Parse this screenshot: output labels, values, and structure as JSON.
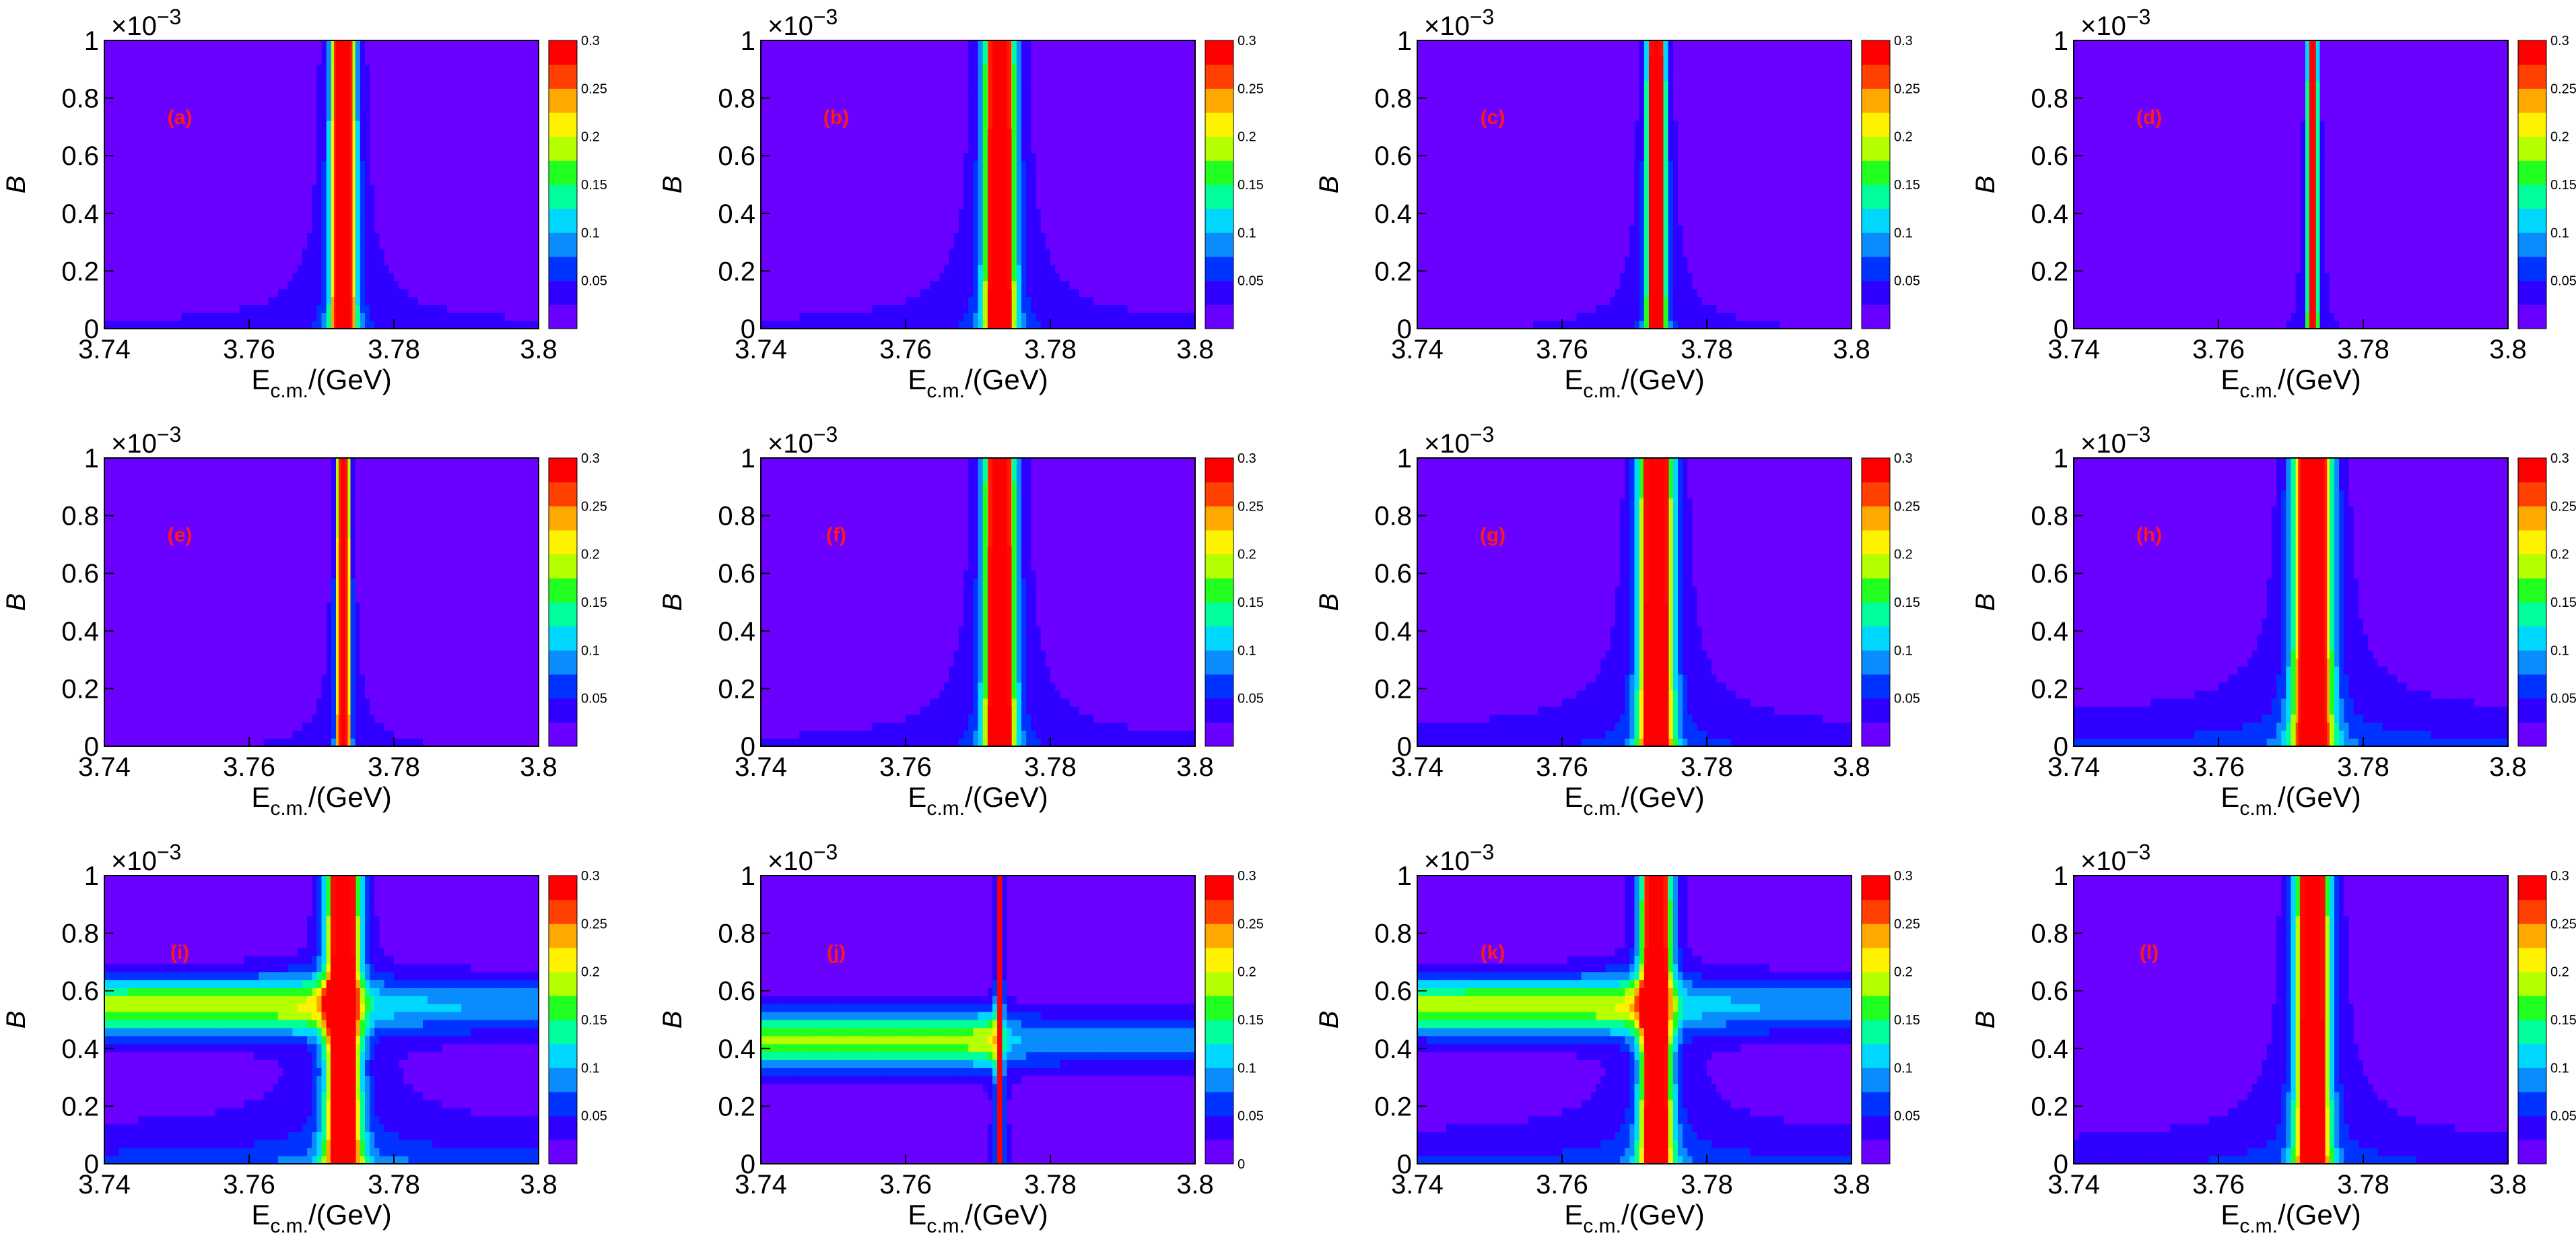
{
  "figure": {
    "palette": [
      "#6a00ff",
      "#2f00ff",
      "#0033ff",
      "#0a8cff",
      "#00d7ff",
      "#00ff9a",
      "#20ff20",
      "#b4ff00",
      "#fff200",
      "#ffa800",
      "#ff4000",
      "#ff0000"
    ]
  },
  "chart_data": [
    {
      "type": "heatmap",
      "panel_label": "(a)",
      "xlabel": "E",
      "xlabel_sub": "c.m.",
      "xlabel_tail": "/(GeV)",
      "ylabel": "B",
      "y_exponent": "×10",
      "y_exponent_sup": "−3",
      "x_range": [
        3.74,
        3.8
      ],
      "y_range": [
        0,
        1
      ],
      "x_ticks": [
        "3.74",
        "3.76",
        "3.78",
        "3.8"
      ],
      "y_ticks": [
        "0",
        "0.2",
        "0.4",
        "0.6",
        "0.8",
        "1"
      ],
      "colorbar": {
        "range": [
          0,
          0.3
        ],
        "ticks": [
          "0.05",
          "0.1",
          "0.15",
          "0.2",
          "0.25",
          "0.3"
        ]
      },
      "peak_x": 3.773,
      "peak_width": 0.0016,
      "wing_level": 0.05
    },
    {
      "type": "heatmap",
      "panel_label": "(b)",
      "xlabel": "E",
      "xlabel_sub": "c.m.",
      "xlabel_tail": "/(GeV)",
      "ylabel": "B",
      "y_exponent": "×10",
      "y_exponent_sup": "−3",
      "x_range": [
        3.74,
        3.8
      ],
      "y_range": [
        0,
        1
      ],
      "x_ticks": [
        "3.74",
        "3.76",
        "3.78",
        "3.8"
      ],
      "y_ticks": [
        "0",
        "0.2",
        "0.4",
        "0.6",
        "0.8",
        "1"
      ],
      "colorbar": {
        "range": [
          0,
          0.3
        ],
        "ticks": [
          "0.05",
          "0.1",
          "0.15",
          "0.2",
          "0.25",
          "0.3"
        ]
      },
      "peak_x": 3.773,
      "peak_width": 0.002,
      "wing_level": 0.05
    },
    {
      "type": "heatmap",
      "panel_label": "(c)",
      "xlabel": "E",
      "xlabel_sub": "c.m.",
      "xlabel_tail": "/(GeV)",
      "ylabel": "B",
      "y_exponent": "×10",
      "y_exponent_sup": "−3",
      "x_range": [
        3.74,
        3.8
      ],
      "y_range": [
        0,
        1
      ],
      "x_ticks": [
        "3.74",
        "3.76",
        "3.78",
        "3.8"
      ],
      "y_ticks": [
        "0",
        "0.2",
        "0.4",
        "0.6",
        "0.8",
        "1"
      ],
      "colorbar": {
        "range": [
          0,
          0.3
        ],
        "ticks": [
          "0.05",
          "0.1",
          "0.15",
          "0.2",
          "0.25",
          "0.3"
        ]
      },
      "peak_x": 3.773,
      "peak_width": 0.0012,
      "wing_level": 0.04
    },
    {
      "type": "heatmap",
      "panel_label": "(d)",
      "xlabel": "E",
      "xlabel_sub": "c.m.",
      "xlabel_tail": "/(GeV)",
      "ylabel": "B",
      "y_exponent": "×10",
      "y_exponent_sup": "−3",
      "x_range": [
        3.74,
        3.8
      ],
      "y_range": [
        0,
        1
      ],
      "x_ticks": [
        "3.74",
        "3.76",
        "3.78",
        "3.8"
      ],
      "y_ticks": [
        "0",
        "0.2",
        "0.4",
        "0.6",
        "0.8",
        "1"
      ],
      "colorbar": {
        "range": [
          0,
          0.3
        ],
        "ticks": [
          "0.05",
          "0.1",
          "0.15",
          "0.2",
          "0.25",
          "0.3"
        ]
      },
      "peak_x": 3.773,
      "peak_width": 0.0006,
      "wing_level": 0.02
    },
    {
      "type": "heatmap",
      "panel_label": "(e)",
      "xlabel": "E",
      "xlabel_sub": "c.m.",
      "xlabel_tail": "/(GeV)",
      "ylabel": "B",
      "y_exponent": "×10",
      "y_exponent_sup": "−3",
      "x_range": [
        3.74,
        3.8
      ],
      "y_range": [
        0,
        1
      ],
      "x_ticks": [
        "3.74",
        "3.76",
        "3.78",
        "3.8"
      ],
      "y_ticks": [
        "0",
        "0.2",
        "0.4",
        "0.6",
        "0.8",
        "1"
      ],
      "colorbar": {
        "range": [
          0,
          0.3
        ],
        "ticks": [
          "0.05",
          "0.1",
          "0.15",
          "0.2",
          "0.25",
          "0.3"
        ]
      },
      "peak_x": 3.773,
      "peak_width": 0.0008,
      "wing_level": 0.04
    },
    {
      "type": "heatmap",
      "panel_label": "(f)",
      "xlabel": "E",
      "xlabel_sub": "c.m.",
      "xlabel_tail": "/(GeV)",
      "ylabel": "B",
      "y_exponent": "×10",
      "y_exponent_sup": "−3",
      "x_range": [
        3.74,
        3.8
      ],
      "y_range": [
        0,
        1
      ],
      "x_ticks": [
        "3.74",
        "3.76",
        "3.78",
        "3.8"
      ],
      "y_ticks": [
        "0",
        "0.2",
        "0.4",
        "0.6",
        "0.8",
        "1"
      ],
      "colorbar": {
        "range": [
          0,
          0.3
        ],
        "ticks": [
          "0.05",
          "0.1",
          "0.15",
          "0.2",
          "0.25",
          "0.3"
        ]
      },
      "peak_x": 3.773,
      "peak_width": 0.002,
      "wing_level": 0.05
    },
    {
      "type": "heatmap",
      "panel_label": "(g)",
      "xlabel": "E",
      "xlabel_sub": "c.m.",
      "xlabel_tail": "/(GeV)",
      "ylabel": "B",
      "y_exponent": "×10",
      "y_exponent_sup": "−3",
      "x_range": [
        3.74,
        3.8
      ],
      "y_range": [
        0,
        1
      ],
      "x_ticks": [
        "3.74",
        "3.76",
        "3.78",
        "3.8"
      ],
      "y_ticks": [
        "0",
        "0.2",
        "0.4",
        "0.6",
        "0.8",
        "1"
      ],
      "colorbar": {
        "range": [
          0,
          0.3
        ],
        "ticks": [
          "0.05",
          "0.1",
          "0.15",
          "0.2",
          "0.25",
          "0.3"
        ]
      },
      "peak_x": 3.773,
      "peak_width": 0.0022,
      "wing_level": 0.07
    },
    {
      "type": "heatmap",
      "panel_label": "(h)",
      "xlabel": "E",
      "xlabel_sub": "c.m.",
      "xlabel_tail": "/(GeV)",
      "ylabel": "B",
      "y_exponent": "×10",
      "y_exponent_sup": "−3",
      "x_range": [
        3.74,
        3.8
      ],
      "y_range": [
        0,
        1
      ],
      "x_ticks": [
        "3.74",
        "3.76",
        "3.78",
        "3.8"
      ],
      "y_ticks": [
        "0",
        "0.2",
        "0.4",
        "0.6",
        "0.8",
        "1"
      ],
      "colorbar": {
        "range": [
          0,
          0.3
        ],
        "ticks": [
          "0.05",
          "0.1",
          "0.15",
          "0.2",
          "0.25",
          "0.3"
        ]
      },
      "peak_x": 3.773,
      "peak_width": 0.0025,
      "wing_level": 0.1
    },
    {
      "type": "heatmap",
      "panel_label": "(i)",
      "xlabel": "E",
      "xlabel_sub": "c.m.",
      "xlabel_tail": "/(GeV)",
      "ylabel": "B",
      "y_exponent": "×10",
      "y_exponent_sup": "−3",
      "x_range": [
        3.74,
        3.8
      ],
      "y_range": [
        0,
        1
      ],
      "x_ticks": [
        "3.74",
        "3.76",
        "3.78",
        "3.8"
      ],
      "y_ticks": [
        "0",
        "0.2",
        "0.4",
        "0.6",
        "0.8",
        "1"
      ],
      "colorbar": {
        "range": [
          0,
          0.3
        ],
        "ticks": [
          "0.05",
          "0.1",
          "0.15",
          "0.2",
          "0.25",
          "0.3"
        ]
      },
      "peak_x": 3.773,
      "peak_width": 0.0022,
      "wing_level": 0.12,
      "band_y": 0.55
    },
    {
      "type": "heatmap",
      "panel_label": "(j)",
      "xlabel": "E",
      "xlabel_sub": "c.m.",
      "xlabel_tail": "/(GeV)",
      "ylabel": "B",
      "y_exponent": "×10",
      "y_exponent_sup": "−3",
      "x_range": [
        3.74,
        3.8
      ],
      "y_range": [
        0,
        1
      ],
      "x_ticks": [
        "3.74",
        "3.76",
        "3.78",
        "3.8"
      ],
      "y_ticks": [
        "0",
        "0.2",
        "0.4",
        "0.6",
        "0.8",
        "1"
      ],
      "colorbar": {
        "range": [
          0,
          0.3
        ],
        "ticks": [
          "0",
          "0.05",
          "0.1",
          "0.15",
          "0.2",
          "0.25",
          "0.3"
        ]
      },
      "peak_x": 3.773,
      "peak_width": 0.0004,
      "wing_level": 0.01,
      "band_y": 0.43
    },
    {
      "type": "heatmap",
      "panel_label": "(k)",
      "xlabel": "E",
      "xlabel_sub": "c.m.",
      "xlabel_tail": "/(GeV)",
      "ylabel": "B",
      "y_exponent": "×10",
      "y_exponent_sup": "−3",
      "x_range": [
        3.74,
        3.8
      ],
      "y_range": [
        0,
        1
      ],
      "x_ticks": [
        "3.74",
        "3.76",
        "3.78",
        "3.8"
      ],
      "y_ticks": [
        "0",
        "0.2",
        "0.4",
        "0.6",
        "0.8",
        "1"
      ],
      "colorbar": {
        "range": [
          0,
          0.3
        ],
        "ticks": [
          "0.05",
          "0.1",
          "0.15",
          "0.2",
          "0.25",
          "0.3"
        ]
      },
      "peak_x": 3.773,
      "peak_width": 0.002,
      "wing_level": 0.1,
      "band_y": 0.55
    },
    {
      "type": "heatmap",
      "panel_label": "(l)",
      "xlabel": "E",
      "xlabel_sub": "c.m.",
      "xlabel_tail": "/(GeV)",
      "ylabel": "B",
      "y_exponent": "×10",
      "y_exponent_sup": "−3",
      "x_range": [
        3.74,
        3.8
      ],
      "y_range": [
        0,
        1
      ],
      "x_ticks": [
        "3.74",
        "3.76",
        "3.78",
        "3.8"
      ],
      "y_ticks": [
        "0",
        "0.2",
        "0.4",
        "0.6",
        "0.8",
        "1"
      ],
      "colorbar": {
        "range": [
          0,
          0.3
        ],
        "ticks": [
          "0.05",
          "0.1",
          "0.15",
          "0.2",
          "0.25",
          "0.3"
        ]
      },
      "peak_x": 3.773,
      "peak_width": 0.0022,
      "wing_level": 0.08
    }
  ]
}
